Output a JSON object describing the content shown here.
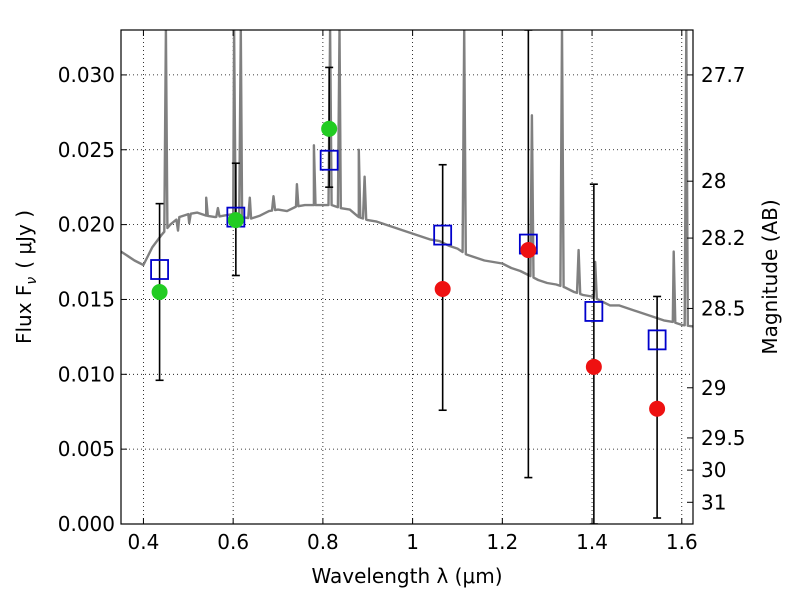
{
  "chart_data": {
    "type": "scatter",
    "title": "",
    "xlabel": "Wavelength  λ (μm)",
    "ylabel": "Flux  F",
    "ylabel_sub": "ν",
    "ylabel_unit": "( μJy )",
    "y2label": "Magnitude (AB)",
    "xlim": [
      0.35,
      1.625
    ],
    "ylim": [
      0.0,
      0.033
    ],
    "grid": true,
    "grid_style": "dotted",
    "x_ticks": [
      0.4,
      0.6,
      0.8,
      1.0,
      1.2,
      1.4,
      1.6
    ],
    "x_tick_labels": [
      "0.4",
      "0.6",
      "0.8",
      "1",
      "1.2",
      "1.4",
      "1.6"
    ],
    "y_ticks": [
      0.0,
      0.005,
      0.01,
      0.015,
      0.02,
      0.025,
      0.03
    ],
    "y_tick_labels": [
      "0.000",
      "0.005",
      "0.010",
      "0.015",
      "0.020",
      "0.025",
      "0.030"
    ],
    "y2_tick_labels": [
      "27.7",
      "28",
      "28.2",
      "28.5",
      "29",
      "29.5",
      "30",
      "31"
    ],
    "y2_tick_flux": [
      0.03,
      0.0229,
      0.0191,
      0.0144,
      0.0091,
      0.00575,
      0.0036,
      0.00145
    ],
    "colors": {
      "model": "#808080",
      "detected": "#22cc22",
      "upper": "#ee1111",
      "model_phot": "#0000cc",
      "errorbar": "#000000"
    },
    "observed_detected": {
      "x": [
        0.436,
        0.606,
        0.814
      ],
      "y": [
        0.0155,
        0.0203,
        0.0264
      ]
    },
    "observed_undetected": {
      "x": [
        1.067,
        1.258,
        1.404,
        1.545
      ],
      "y": [
        0.0157,
        0.0183,
        0.0105,
        0.0077
      ]
    },
    "model_photometry": {
      "x": [
        0.436,
        0.606,
        0.814,
        1.067,
        1.258,
        1.404,
        1.545
      ],
      "y": [
        0.017,
        0.0205,
        0.0243,
        0.0193,
        0.0187,
        0.0142,
        0.0123
      ]
    },
    "error_bars": {
      "x": [
        0.436,
        0.606,
        0.814,
        1.067,
        1.258,
        1.404,
        1.545
      ],
      "low": [
        0.0096,
        0.0166,
        0.0225,
        0.0076,
        0.0031,
        0.0,
        0.0004
      ],
      "high": [
        0.0214,
        0.0241,
        0.0305,
        0.024,
        0.033,
        0.0227,
        0.0152
      ]
    },
    "model_spectrum": {
      "x": [
        0.35,
        0.36,
        0.38,
        0.4,
        0.42,
        0.44,
        0.46,
        0.48,
        0.5,
        0.52,
        0.54,
        0.56,
        0.58,
        0.6,
        0.62,
        0.64,
        0.66,
        0.68,
        0.7,
        0.72,
        0.74,
        0.76,
        0.78,
        0.8,
        0.82,
        0.84,
        0.86,
        0.88,
        0.9,
        0.92,
        0.94,
        0.96,
        0.98,
        1.0,
        1.02,
        1.04,
        1.06,
        1.08,
        1.1,
        1.12,
        1.14,
        1.16,
        1.18,
        1.2,
        1.22,
        1.24,
        1.26,
        1.28,
        1.3,
        1.32,
        1.34,
        1.36,
        1.38,
        1.4,
        1.42,
        1.44,
        1.46,
        1.48,
        1.5,
        1.52,
        1.54,
        1.56,
        1.58,
        1.6,
        1.625
      ],
      "y": [
        0.0182,
        0.018,
        0.0176,
        0.0173,
        0.0185,
        0.0193,
        0.02,
        0.0205,
        0.0207,
        0.0208,
        0.0206,
        0.0205,
        0.0206,
        0.0207,
        0.0205,
        0.0204,
        0.0206,
        0.0209,
        0.021,
        0.0209,
        0.0212,
        0.0213,
        0.0213,
        0.0213,
        0.0213,
        0.0211,
        0.021,
        0.0205,
        0.0203,
        0.0202,
        0.02,
        0.0198,
        0.0196,
        0.0194,
        0.0192,
        0.019,
        0.0189,
        0.0186,
        0.0184,
        0.018,
        0.0178,
        0.0176,
        0.0175,
        0.0174,
        0.0171,
        0.0169,
        0.0166,
        0.0163,
        0.0161,
        0.016,
        0.0158,
        0.0155,
        0.0153,
        0.0152,
        0.0149,
        0.0146,
        0.0146,
        0.0144,
        0.0142,
        0.014,
        0.0138,
        0.0136,
        0.0135,
        0.0133,
        0.0132
      ]
    },
    "emission_lines": [
      {
        "x": 0.45,
        "peak": 0.033
      },
      {
        "x": 0.477,
        "peak": 0.0196
      },
      {
        "x": 0.502,
        "peak": 0.0201
      },
      {
        "x": 0.54,
        "peak": 0.0218
      },
      {
        "x": 0.566,
        "peak": 0.0211
      },
      {
        "x": 0.602,
        "peak": 0.033
      },
      {
        "x": 0.617,
        "peak": 0.033
      },
      {
        "x": 0.637,
        "peak": 0.0218
      },
      {
        "x": 0.69,
        "peak": 0.0219
      },
      {
        "x": 0.742,
        "peak": 0.0227
      },
      {
        "x": 0.78,
        "peak": 0.0253
      },
      {
        "x": 0.816,
        "peak": 0.033
      },
      {
        "x": 0.837,
        "peak": 0.033
      },
      {
        "x": 0.88,
        "peak": 0.025
      },
      {
        "x": 0.893,
        "peak": 0.0232
      },
      {
        "x": 1.115,
        "peak": 0.033
      },
      {
        "x": 1.266,
        "peak": 0.0273
      },
      {
        "x": 1.333,
        "peak": 0.033
      },
      {
        "x": 1.37,
        "peak": 0.0183
      },
      {
        "x": 1.407,
        "peak": 0.0175
      },
      {
        "x": 1.582,
        "peak": 0.0182
      },
      {
        "x": 1.61,
        "peak": 0.033
      }
    ]
  }
}
